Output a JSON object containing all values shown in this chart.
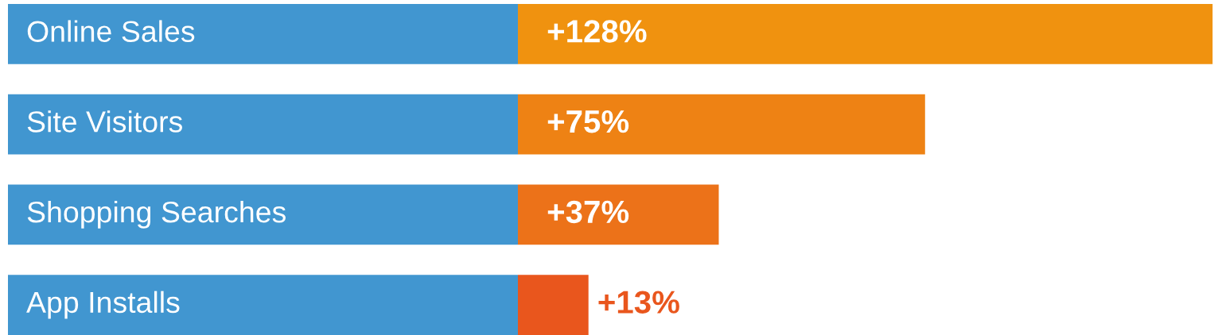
{
  "chart_data": {
    "type": "bar",
    "orientation": "horizontal",
    "categories": [
      "Online Sales",
      "Site Visitors",
      "Shopping Searches",
      "App Installs"
    ],
    "values": [
      128,
      75,
      37,
      13
    ],
    "value_labels": [
      "+128%",
      "+75%",
      "+37%",
      "+13%"
    ],
    "colors": [
      "#f0920f",
      "#ee8214",
      "#ec7219",
      "#e9561d"
    ],
    "legend": false
  }
}
